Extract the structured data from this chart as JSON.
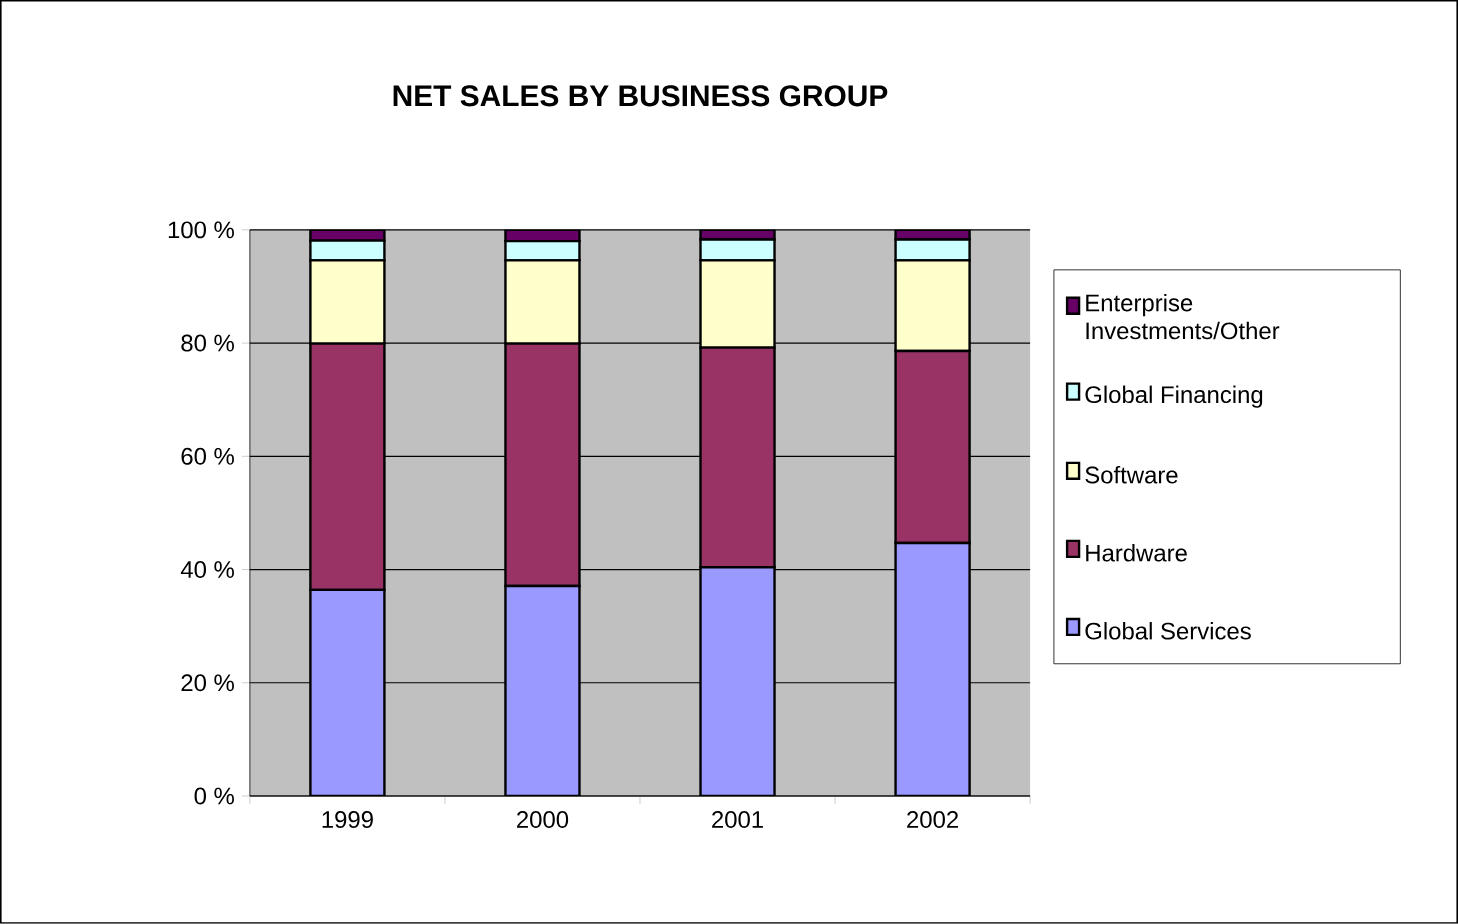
{
  "chart_data": {
    "type": "bar",
    "stacked": true,
    "title": "NET SALES BY BUSINESS GROUP",
    "categories": [
      "1999",
      "2000",
      "2001",
      "2002"
    ],
    "series": [
      {
        "name": "Global Services",
        "color": "#9999ff",
        "values": [
          36.4,
          37.1,
          40.4,
          44.7
        ]
      },
      {
        "name": "Hardware",
        "color": "#993366",
        "values": [
          43.5,
          42.8,
          38.8,
          33.9
        ]
      },
      {
        "name": "Software",
        "color": "#ffffcc",
        "values": [
          14.7,
          14.7,
          15.4,
          16.0
        ]
      },
      {
        "name": "Global Financing",
        "color": "#ccffff",
        "values": [
          3.5,
          3.4,
          3.7,
          3.7
        ]
      },
      {
        "name": "Enterprise Investments/Other",
        "color": "#660066",
        "values": [
          1.9,
          2.0,
          1.7,
          1.7
        ]
      }
    ],
    "ylim": [
      0,
      100
    ],
    "yticks": [
      {
        "value": 0,
        "label": "0 %"
      },
      {
        "value": 20,
        "label": "20 %"
      },
      {
        "value": 40,
        "label": "40 %"
      },
      {
        "value": 60,
        "label": "60 %"
      },
      {
        "value": 80,
        "label": "80 %"
      },
      {
        "value": 100,
        "label": "100 %"
      }
    ],
    "grid": "y",
    "legend": "right"
  }
}
